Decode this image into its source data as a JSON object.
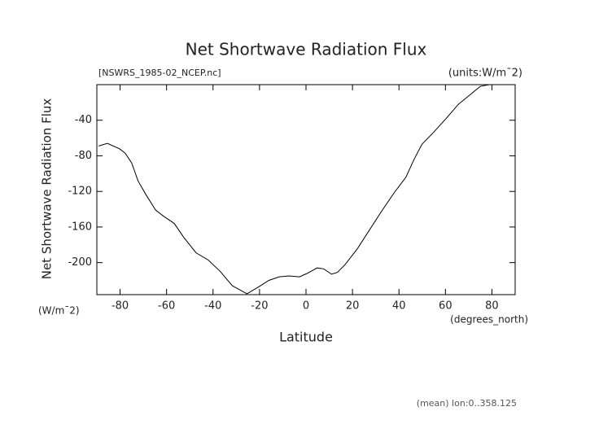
{
  "chart_data": {
    "type": "line",
    "title": "Net Shortwave Radiation Flux",
    "file_label": "[NSWRS_1985-02_NCEP.nc]",
    "units_label": "(units:W/m¯2)",
    "y_axis_label": "Net Shortwave Radiation Flux",
    "y_unit_label": "(W/m¯2)",
    "x_axis_label": "Latitude",
    "x_unit_label": "(degrees_north)",
    "footnote": "(mean) lon:0..358.125",
    "xlim": [
      -90,
      90
    ],
    "ylim": [
      -236,
      0
    ],
    "xticks": [
      -80,
      -60,
      -40,
      -20,
      0,
      20,
      40,
      60,
      80
    ],
    "yticks": [
      -40,
      -80,
      -120,
      -160,
      -200
    ],
    "x": [
      -89.3,
      -85.5,
      -80.3,
      -77.8,
      -75,
      -72.3,
      -68.8,
      -64.7,
      -61.2,
      -56.7,
      -52.5,
      -47.3,
      -42.1,
      -36.9,
      -31.7,
      -25.4,
      -20.2,
      -16,
      -11.5,
      -7.4,
      -2.8,
      0.6,
      4.8,
      7.6,
      11,
      13.5,
      16.9,
      22.2,
      27.4,
      32.6,
      37.8,
      43,
      46.5,
      49.9,
      55.1,
      60.3,
      65.6,
      70.8,
      74.9,
      78.8
    ],
    "series": [
      {
        "color": "#000000",
        "values": [
          -69,
          -66,
          -72,
          -77,
          -88,
          -108,
          -124,
          -141,
          -148,
          -156,
          -172,
          -189,
          -197,
          -210,
          -226,
          -235,
          -227,
          -220,
          -216,
          -215,
          -216,
          -212,
          -206,
          -207,
          -213,
          -211,
          -202,
          -184,
          -163,
          -142,
          -122,
          -104,
          -84,
          -67,
          -53,
          -38,
          -22,
          -11,
          -2,
          0
        ]
      }
    ]
  }
}
